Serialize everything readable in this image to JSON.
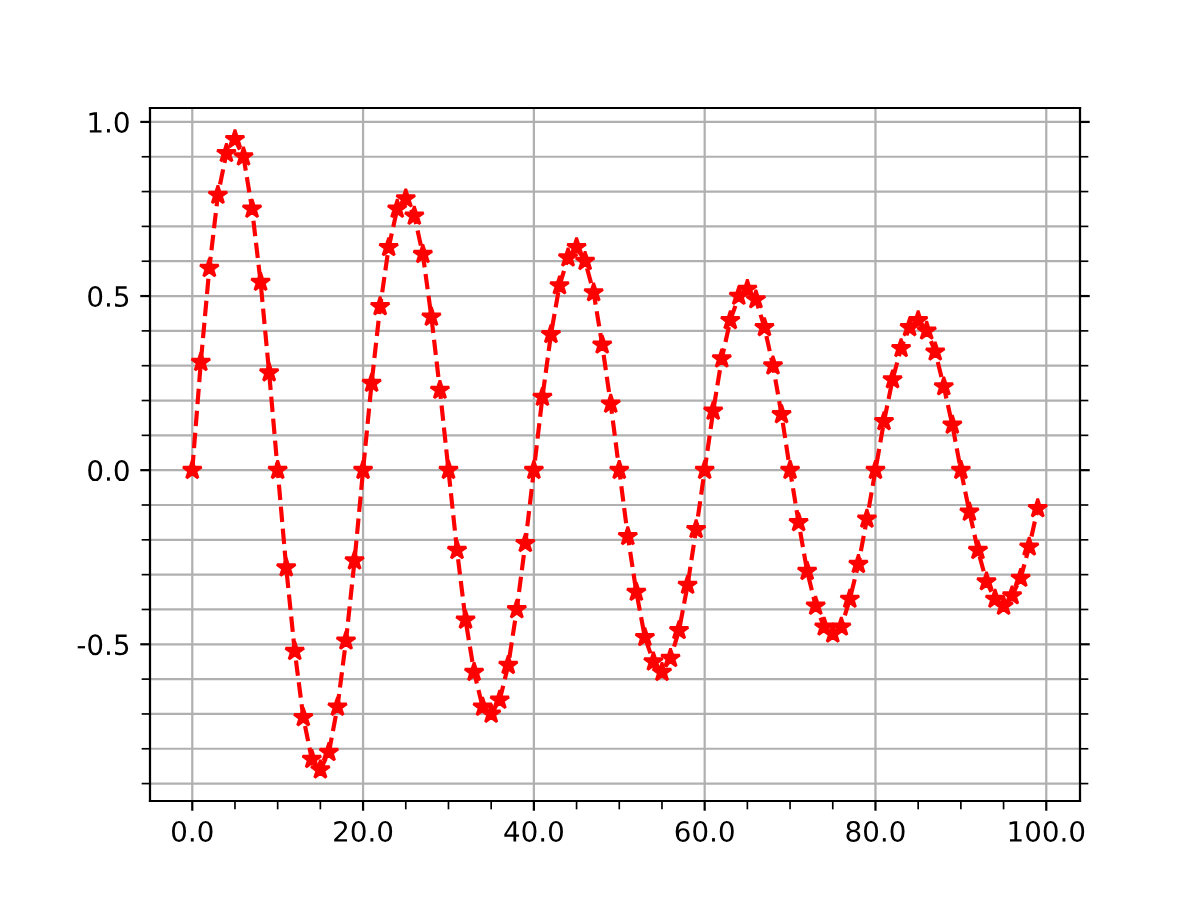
{
  "chart_data": {
    "type": "line",
    "marker": "star",
    "line_style": "dashed",
    "grid": true,
    "x": [
      0,
      1,
      2,
      3,
      4,
      5,
      6,
      7,
      8,
      9,
      10,
      11,
      12,
      13,
      14,
      15,
      16,
      17,
      18,
      19,
      20,
      21,
      22,
      23,
      24,
      25,
      26,
      27,
      28,
      29,
      30,
      31,
      32,
      33,
      34,
      35,
      36,
      37,
      38,
      39,
      40,
      41,
      42,
      43,
      44,
      45,
      46,
      47,
      48,
      49,
      50,
      51,
      52,
      53,
      54,
      55,
      56,
      57,
      58,
      59,
      60,
      61,
      62,
      63,
      64,
      65,
      66,
      67,
      68,
      69,
      70,
      71,
      72,
      73,
      74,
      75,
      76,
      77,
      78,
      79,
      80,
      81,
      82,
      83,
      84,
      85,
      86,
      87,
      88,
      89,
      90,
      91,
      92,
      93,
      94,
      95,
      96,
      97,
      98,
      99
    ],
    "series": [
      {
        "color": "#ff0000",
        "values": [
          0,
          0.31,
          0.58,
          0.79,
          0.91,
          0.95,
          0.9,
          0.75,
          0.54,
          0.28,
          0,
          -0.28,
          -0.52,
          -0.71,
          -0.83,
          -0.86,
          -0.81,
          -0.68,
          -0.49,
          -0.26,
          0,
          0.25,
          0.47,
          0.64,
          0.75,
          0.78,
          0.73,
          0.62,
          0.44,
          0.23,
          0,
          -0.23,
          -0.43,
          -0.58,
          -0.68,
          -0.7,
          -0.66,
          -0.56,
          -0.4,
          -0.21,
          0,
          0.21,
          0.39,
          0.53,
          0.61,
          0.64,
          0.6,
          0.51,
          0.36,
          0.19,
          0,
          -0.19,
          -0.35,
          -0.48,
          -0.55,
          -0.58,
          -0.54,
          -0.46,
          -0.33,
          -0.17,
          0,
          0.17,
          0.32,
          0.43,
          0.5,
          0.52,
          0.49,
          0.41,
          0.3,
          0.16,
          0,
          -0.15,
          -0.29,
          -0.39,
          -0.45,
          -0.47,
          -0.45,
          -0.37,
          -0.27,
          -0.14,
          0,
          0.14,
          0.26,
          0.35,
          0.41,
          0.43,
          0.4,
          0.34,
          0.24,
          0.13,
          0,
          -0.12,
          -0.23,
          -0.32,
          -0.37,
          -0.39,
          -0.36,
          -0.31,
          -0.22,
          -0.11
        ]
      }
    ],
    "xlim": [
      -4.95,
      103.95
    ],
    "ylim": [
      -0.95,
      1.04
    ],
    "xticks": [
      {
        "value": 0,
        "label": "0.0"
      },
      {
        "value": 5,
        "label": null
      },
      {
        "value": 10,
        "label": null
      },
      {
        "value": 15,
        "label": null
      },
      {
        "value": 20,
        "label": "20.0"
      },
      {
        "value": 25,
        "label": null
      },
      {
        "value": 30,
        "label": null
      },
      {
        "value": 35,
        "label": null
      },
      {
        "value": 40,
        "label": "40.0"
      },
      {
        "value": 45,
        "label": null
      },
      {
        "value": 50,
        "label": null
      },
      {
        "value": 55,
        "label": null
      },
      {
        "value": 60,
        "label": "60.0"
      },
      {
        "value": 65,
        "label": null
      },
      {
        "value": 70,
        "label": null
      },
      {
        "value": 75,
        "label": null
      },
      {
        "value": 80,
        "label": "80.0"
      },
      {
        "value": 85,
        "label": null
      },
      {
        "value": 90,
        "label": null
      },
      {
        "value": 95,
        "label": null
      },
      {
        "value": 100,
        "label": "100.0"
      }
    ],
    "yticks": [
      {
        "value": -0.9,
        "label": null
      },
      {
        "value": -0.8,
        "label": null
      },
      {
        "value": -0.7,
        "label": null
      },
      {
        "value": -0.6,
        "label": null
      },
      {
        "value": -0.5,
        "label": "-0.5"
      },
      {
        "value": -0.4,
        "label": null
      },
      {
        "value": -0.3,
        "label": null
      },
      {
        "value": -0.2,
        "label": null
      },
      {
        "value": -0.1,
        "label": null
      },
      {
        "value": 0,
        "label": "0.0"
      },
      {
        "value": 0.1,
        "label": null
      },
      {
        "value": 0.2,
        "label": null
      },
      {
        "value": 0.3,
        "label": null
      },
      {
        "value": 0.4,
        "label": null
      },
      {
        "value": 0.5,
        "label": "0.5"
      },
      {
        "value": 0.6,
        "label": null
      },
      {
        "value": 0.7,
        "label": null
      },
      {
        "value": 0.8,
        "label": null
      },
      {
        "value": 0.9,
        "label": null
      },
      {
        "value": 1.0,
        "label": "1.0"
      }
    ]
  }
}
